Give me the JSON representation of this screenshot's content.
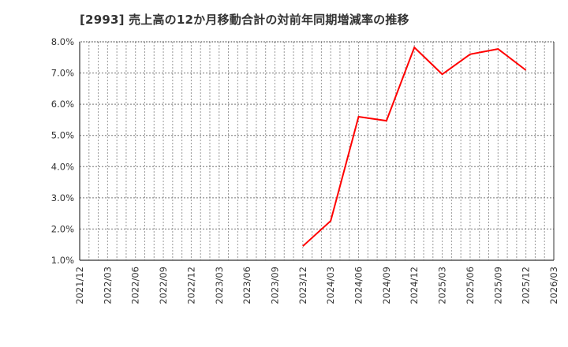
{
  "title": "[2993]  売上高の12か月移動合計の対前年同期増減率の推移",
  "colors": {
    "line": "#ff0000",
    "axis": "#333333",
    "grid": "#999999",
    "text": "#333333"
  },
  "chart_data": {
    "type": "line",
    "title": "[2993]  売上高の12か月移動合計の対前年同期増減率の推移",
    "xlabel": "",
    "ylabel": "",
    "ylim": [
      1.0,
      8.0
    ],
    "yticks": [
      "1.0%",
      "2.0%",
      "3.0%",
      "4.0%",
      "5.0%",
      "6.0%",
      "7.0%",
      "8.0%"
    ],
    "xticks": [
      "2021/12",
      "2022/03",
      "2022/06",
      "2022/09",
      "2022/12",
      "2023/03",
      "2023/06",
      "2023/09",
      "2023/12",
      "2024/03",
      "2024/06",
      "2024/09",
      "2024/12",
      "2025/03",
      "2025/06",
      "2025/09",
      "2025/12",
      "2026/03"
    ],
    "grid": true,
    "legend": "none",
    "series": [
      {
        "name": "売上高の12か月移動合計の対前年同期増減率",
        "x": [
          "2023/12",
          "2024/03",
          "2024/06",
          "2024/09",
          "2024/12",
          "2025/03",
          "2025/06",
          "2025/09",
          "2025/12"
        ],
        "values": [
          1.45,
          2.26,
          5.6,
          5.47,
          7.82,
          6.96,
          7.6,
          7.77,
          7.09
        ]
      }
    ]
  }
}
